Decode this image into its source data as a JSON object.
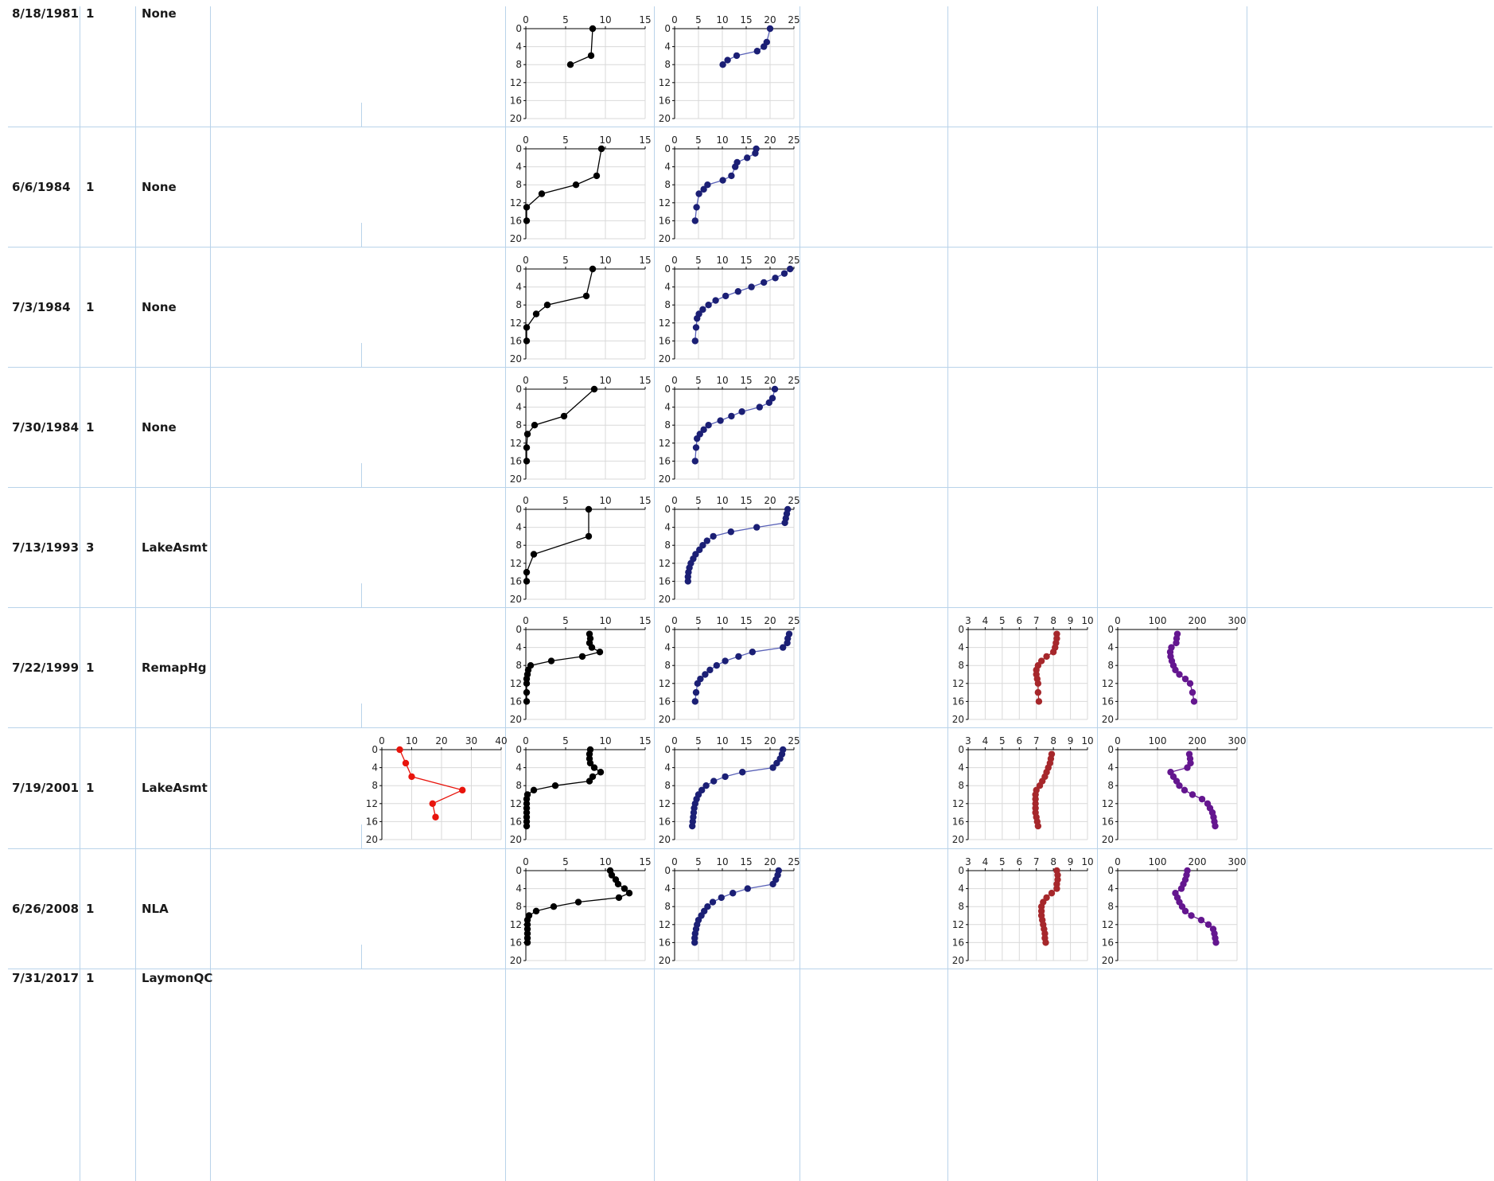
{
  "rows": [
    {
      "date": "8/18/1981",
      "count": "1",
      "project": "None",
      "charts": {
        "do": [
          [
            8.4,
            0
          ],
          [
            8.2,
            6
          ],
          [
            5.6,
            8
          ]
        ],
        "temp": [
          [
            20.0,
            0
          ],
          [
            19.3,
            3
          ],
          [
            18.7,
            4
          ],
          [
            17.3,
            5
          ],
          [
            13.0,
            6
          ],
          [
            11.1,
            7
          ],
          [
            10.1,
            8
          ]
        ]
      }
    },
    {
      "date": "6/6/1984",
      "count": "1",
      "project": "None",
      "charts": {
        "do": [
          [
            9.5,
            0
          ],
          [
            8.9,
            6
          ],
          [
            6.3,
            8
          ],
          [
            2.0,
            10
          ],
          [
            0.1,
            13
          ],
          [
            0.1,
            16
          ]
        ],
        "temp": [
          [
            17.1,
            0
          ],
          [
            16.9,
            1
          ],
          [
            15.2,
            2
          ],
          [
            13.1,
            3
          ],
          [
            12.7,
            4
          ],
          [
            11.9,
            6
          ],
          [
            10.1,
            7
          ],
          [
            6.9,
            8
          ],
          [
            6.1,
            9
          ],
          [
            5.1,
            10
          ],
          [
            4.6,
            13
          ],
          [
            4.3,
            16
          ]
        ]
      }
    },
    {
      "date": "7/3/1984",
      "count": "1",
      "project": "None",
      "charts": {
        "do": [
          [
            8.4,
            0
          ],
          [
            7.6,
            6
          ],
          [
            2.7,
            8
          ],
          [
            1.3,
            10
          ],
          [
            0.1,
            13
          ],
          [
            0.1,
            16
          ]
        ],
        "temp": [
          [
            24.2,
            0
          ],
          [
            23.0,
            1
          ],
          [
            21.1,
            2
          ],
          [
            18.7,
            3
          ],
          [
            16.1,
            4
          ],
          [
            13.3,
            5
          ],
          [
            10.7,
            6
          ],
          [
            8.6,
            7
          ],
          [
            7.1,
            8
          ],
          [
            5.9,
            9
          ],
          [
            5.1,
            10
          ],
          [
            4.7,
            11
          ],
          [
            4.5,
            13
          ],
          [
            4.3,
            16
          ]
        ]
      }
    },
    {
      "date": "7/30/1984",
      "count": "1",
      "project": "None",
      "charts": {
        "do": [
          [
            8.6,
            0
          ],
          [
            4.8,
            6
          ],
          [
            1.1,
            8
          ],
          [
            0.2,
            10
          ],
          [
            0.1,
            13
          ],
          [
            0.1,
            16
          ]
        ],
        "temp": [
          [
            21.0,
            0
          ],
          [
            20.5,
            2
          ],
          [
            19.8,
            3
          ],
          [
            17.8,
            4
          ],
          [
            14.1,
            5
          ],
          [
            11.9,
            6
          ],
          [
            9.6,
            7
          ],
          [
            7.1,
            8
          ],
          [
            6.1,
            9
          ],
          [
            5.3,
            10
          ],
          [
            4.7,
            11
          ],
          [
            4.5,
            13
          ],
          [
            4.3,
            16
          ]
        ]
      }
    },
    {
      "date": "7/13/1993",
      "count": "3",
      "project": "LakeAsmt",
      "charts": {
        "do": [
          [
            7.9,
            0
          ],
          [
            7.9,
            6
          ],
          [
            1.0,
            10
          ],
          [
            0.1,
            14
          ],
          [
            0.1,
            16
          ]
        ],
        "temp": [
          [
            23.7,
            0
          ],
          [
            23.5,
            1
          ],
          [
            23.3,
            2
          ],
          [
            23.1,
            3
          ],
          [
            17.2,
            4
          ],
          [
            11.8,
            5
          ],
          [
            8.1,
            6
          ],
          [
            6.8,
            7
          ],
          [
            5.9,
            8
          ],
          [
            5.2,
            9
          ],
          [
            4.4,
            10
          ],
          [
            3.9,
            11
          ],
          [
            3.4,
            12
          ],
          [
            3.1,
            13
          ],
          [
            2.9,
            14
          ],
          [
            2.8,
            15
          ],
          [
            2.8,
            16
          ]
        ]
      }
    },
    {
      "date": "7/22/1999",
      "count": "1",
      "project": "RemapHg",
      "charts": {
        "do": [
          [
            8.0,
            1
          ],
          [
            8.1,
            2
          ],
          [
            8.0,
            3
          ],
          [
            8.3,
            4
          ],
          [
            9.3,
            5
          ],
          [
            7.1,
            6
          ],
          [
            3.2,
            7
          ],
          [
            0.6,
            8
          ],
          [
            0.3,
            9
          ],
          [
            0.2,
            10
          ],
          [
            0.1,
            11
          ],
          [
            0.1,
            12
          ],
          [
            0.1,
            14
          ],
          [
            0.1,
            16
          ]
        ],
        "temp": [
          [
            24.0,
            1
          ],
          [
            23.7,
            2
          ],
          [
            23.6,
            3
          ],
          [
            22.7,
            4
          ],
          [
            16.3,
            5
          ],
          [
            13.4,
            6
          ],
          [
            10.6,
            7
          ],
          [
            8.8,
            8
          ],
          [
            7.4,
            9
          ],
          [
            6.4,
            10
          ],
          [
            5.4,
            11
          ],
          [
            4.8,
            12
          ],
          [
            4.5,
            14
          ],
          [
            4.3,
            16
          ]
        ],
        "ph": [
          [
            8.2,
            1
          ],
          [
            8.2,
            2
          ],
          [
            8.15,
            3
          ],
          [
            8.1,
            4
          ],
          [
            8.0,
            5
          ],
          [
            7.6,
            6
          ],
          [
            7.3,
            7
          ],
          [
            7.1,
            8
          ],
          [
            7.0,
            9
          ],
          [
            7.0,
            10
          ],
          [
            7.05,
            11
          ],
          [
            7.1,
            12
          ],
          [
            7.1,
            14
          ],
          [
            7.15,
            16
          ]
        ],
        "cond": [
          [
            150,
            1
          ],
          [
            148,
            2
          ],
          [
            147,
            3
          ],
          [
            135,
            4
          ],
          [
            132,
            5
          ],
          [
            133,
            6
          ],
          [
            136,
            7
          ],
          [
            140,
            8
          ],
          [
            145,
            9
          ],
          [
            155,
            10
          ],
          [
            170,
            11
          ],
          [
            182,
            12
          ],
          [
            188,
            14
          ],
          [
            192,
            16
          ]
        ]
      }
    },
    {
      "date": "7/19/2001",
      "count": "1",
      "project": "LakeAsmt",
      "charts": {
        "secchi": [
          [
            6,
            0
          ],
          [
            8,
            3
          ],
          [
            10,
            6
          ],
          [
            27,
            9
          ],
          [
            17,
            12
          ],
          [
            18,
            15
          ]
        ],
        "do": [
          [
            8.1,
            0
          ],
          [
            8.0,
            1
          ],
          [
            8.0,
            2
          ],
          [
            8.1,
            3
          ],
          [
            8.6,
            4
          ],
          [
            9.4,
            5
          ],
          [
            8.4,
            6
          ],
          [
            8.0,
            7
          ],
          [
            3.7,
            8
          ],
          [
            1.0,
            9
          ],
          [
            0.2,
            10
          ],
          [
            0.1,
            11
          ],
          [
            0.1,
            12
          ],
          [
            0.1,
            13
          ],
          [
            0.1,
            14
          ],
          [
            0.1,
            15
          ],
          [
            0.1,
            16
          ],
          [
            0.1,
            17
          ]
        ],
        "temp": [
          [
            22.7,
            0
          ],
          [
            22.5,
            1
          ],
          [
            22.1,
            2
          ],
          [
            21.4,
            3
          ],
          [
            20.6,
            4
          ],
          [
            14.2,
            5
          ],
          [
            10.6,
            6
          ],
          [
            8.2,
            7
          ],
          [
            6.6,
            8
          ],
          [
            5.7,
            9
          ],
          [
            5.0,
            10
          ],
          [
            4.6,
            11
          ],
          [
            4.3,
            12
          ],
          [
            4.1,
            13
          ],
          [
            4.0,
            14
          ],
          [
            3.9,
            15
          ],
          [
            3.8,
            16
          ],
          [
            3.7,
            17
          ]
        ],
        "ph": [
          [
            7.9,
            1
          ],
          [
            7.85,
            2
          ],
          [
            7.8,
            3
          ],
          [
            7.7,
            4
          ],
          [
            7.6,
            5
          ],
          [
            7.5,
            6
          ],
          [
            7.35,
            7
          ],
          [
            7.2,
            8
          ],
          [
            7.0,
            9
          ],
          [
            6.95,
            10
          ],
          [
            6.95,
            11
          ],
          [
            6.95,
            12
          ],
          [
            6.95,
            13
          ],
          [
            6.95,
            14
          ],
          [
            7.0,
            15
          ],
          [
            7.05,
            16
          ],
          [
            7.1,
            17
          ]
        ],
        "cond": [
          [
            180,
            1
          ],
          [
            182,
            2
          ],
          [
            183,
            3
          ],
          [
            175,
            4
          ],
          [
            133,
            5
          ],
          [
            140,
            6
          ],
          [
            148,
            7
          ],
          [
            155,
            8
          ],
          [
            168,
            9
          ],
          [
            188,
            10
          ],
          [
            212,
            11
          ],
          [
            226,
            12
          ],
          [
            232,
            13
          ],
          [
            238,
            14
          ],
          [
            241,
            15
          ],
          [
            243,
            16
          ],
          [
            245,
            17
          ]
        ]
      }
    },
    {
      "date": "6/26/2008",
      "count": "1",
      "project": "NLA",
      "charts": {
        "do": [
          [
            10.6,
            0
          ],
          [
            10.8,
            1
          ],
          [
            11.3,
            2
          ],
          [
            11.6,
            3
          ],
          [
            12.4,
            4
          ],
          [
            13.0,
            5
          ],
          [
            11.7,
            6
          ],
          [
            6.6,
            7
          ],
          [
            3.5,
            8
          ],
          [
            1.3,
            9
          ],
          [
            0.4,
            10
          ],
          [
            0.2,
            11
          ],
          [
            0.2,
            12
          ],
          [
            0.2,
            13
          ],
          [
            0.2,
            14
          ],
          [
            0.2,
            15
          ],
          [
            0.2,
            16
          ]
        ],
        "temp": [
          [
            21.8,
            0
          ],
          [
            21.6,
            1
          ],
          [
            21.2,
            2
          ],
          [
            20.6,
            3
          ],
          [
            15.3,
            4
          ],
          [
            12.2,
            5
          ],
          [
            9.8,
            6
          ],
          [
            8.0,
            7
          ],
          [
            6.9,
            8
          ],
          [
            6.2,
            9
          ],
          [
            5.6,
            10
          ],
          [
            5.0,
            11
          ],
          [
            4.7,
            12
          ],
          [
            4.5,
            13
          ],
          [
            4.3,
            14
          ],
          [
            4.2,
            15
          ],
          [
            4.2,
            16
          ]
        ],
        "ph": [
          [
            8.2,
            0
          ],
          [
            8.25,
            1
          ],
          [
            8.25,
            2
          ],
          [
            8.2,
            3
          ],
          [
            8.2,
            4
          ],
          [
            7.9,
            5
          ],
          [
            7.6,
            6
          ],
          [
            7.4,
            7
          ],
          [
            7.3,
            8
          ],
          [
            7.3,
            9
          ],
          [
            7.3,
            10
          ],
          [
            7.35,
            11
          ],
          [
            7.4,
            12
          ],
          [
            7.45,
            13
          ],
          [
            7.5,
            14
          ],
          [
            7.5,
            15
          ],
          [
            7.55,
            16
          ]
        ],
        "cond": [
          [
            175,
            0
          ],
          [
            173,
            1
          ],
          [
            170,
            2
          ],
          [
            165,
            3
          ],
          [
            160,
            4
          ],
          [
            145,
            5
          ],
          [
            150,
            6
          ],
          [
            155,
            7
          ],
          [
            162,
            8
          ],
          [
            170,
            9
          ],
          [
            185,
            10
          ],
          [
            210,
            11
          ],
          [
            228,
            12
          ],
          [
            240,
            13
          ],
          [
            243,
            14
          ],
          [
            245,
            15
          ],
          [
            247,
            16
          ]
        ]
      }
    },
    {
      "date": "7/31/2017",
      "count": "1",
      "project": "LaymonQC",
      "charts": {}
    }
  ],
  "chart_defs": {
    "secchi": {
      "xlim": [
        0,
        40
      ],
      "xticks": [
        0,
        10,
        20,
        30,
        40
      ],
      "color": "#e8140c",
      "line": "#e8140c"
    },
    "do": {
      "xlim": [
        0,
        15
      ],
      "xticks": [
        0,
        5,
        10,
        15
      ],
      "color": "#000000",
      "line": "#000000"
    },
    "temp": {
      "xlim": [
        0,
        25
      ],
      "xticks": [
        0,
        5,
        10,
        15,
        20,
        25
      ],
      "color": "#1b1f75",
      "line": "#5a62b8"
    },
    "ph": {
      "xlim": [
        3,
        10
      ],
      "xticks": [
        3,
        4,
        5,
        6,
        7,
        8,
        9,
        10
      ],
      "color": "#a6272b",
      "line": "#a6272b"
    },
    "cond": {
      "xlim": [
        0,
        300
      ],
      "xticks": [
        0,
        100,
        200,
        300
      ],
      "color": "#64168f",
      "line": "#64168f"
    }
  },
  "depth_ticks": [
    0,
    4,
    8,
    12,
    16,
    20
  ],
  "chart_data": [
    {
      "type": "scatter",
      "title": "",
      "xlabel": "",
      "ylabel": "",
      "series_ref": "rows[].charts"
    }
  ]
}
